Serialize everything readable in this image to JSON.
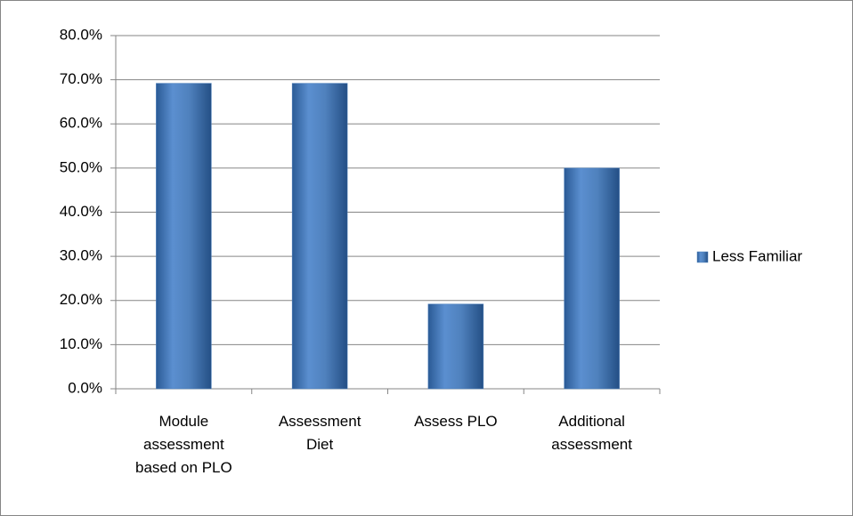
{
  "chart_data": {
    "type": "bar",
    "categories": [
      "Module assessment based on PLO",
      "Assessment Diet",
      "Assess PLO",
      "Additional assessment"
    ],
    "series": [
      {
        "name": "Less Familiar",
        "color": "#4f81bd",
        "values": [
          69.2,
          69.2,
          19.2,
          50.0
        ]
      }
    ],
    "ylim": [
      0,
      80
    ],
    "yticks": [
      {
        "value": 0,
        "label": "0.0%"
      },
      {
        "value": 10,
        "label": "10.0%"
      },
      {
        "value": 20,
        "label": "20.0%"
      },
      {
        "value": 30,
        "label": "30.0%"
      },
      {
        "value": 40,
        "label": "40.0%"
      },
      {
        "value": 50,
        "label": "50.0%"
      },
      {
        "value": 60,
        "label": "60.0%"
      },
      {
        "value": 70,
        "label": "70.0%"
      },
      {
        "value": 80,
        "label": "80.0%"
      }
    ],
    "grid": true,
    "legend": "right"
  }
}
